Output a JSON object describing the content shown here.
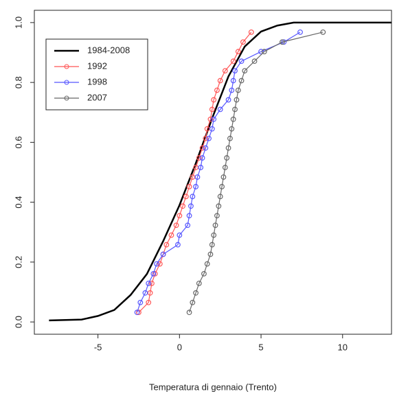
{
  "chart_data": {
    "type": "line",
    "xlabel": "Temperatura di gennaio (Trento)",
    "xlim": [
      -8.9,
      13.0
    ],
    "ylim": [
      -0.041,
      1.041
    ],
    "xticks": [
      -5,
      0,
      5,
      10
    ],
    "yticks": [
      {
        "value": 0,
        "label": "0.0"
      },
      0.2,
      0.4,
      0.6,
      0.8,
      {
        "value": 1,
        "label": "1.0"
      }
    ],
    "legend": "top-left",
    "series": [
      {
        "name": "1984-2008",
        "color": "#000000",
        "markers": false,
        "x": [
          -8,
          -6,
          -5,
          -4,
          -3,
          -2,
          -1,
          0,
          1,
          2,
          3,
          4,
          5,
          6,
          7,
          13
        ],
        "values": [
          0.005,
          0.008,
          0.02,
          0.04,
          0.09,
          0.16,
          0.27,
          0.39,
          0.53,
          0.68,
          0.82,
          0.92,
          0.97,
          0.99,
          1.0,
          1.0
        ]
      },
      {
        "name": "1992",
        "color": "#ff5555",
        "markers": true,
        "x": [
          -2.5,
          -1.9,
          -1.8,
          -1.7,
          -1.5,
          -1.2,
          -1.0,
          -0.8,
          -0.5,
          -0.2,
          0.0,
          0.2,
          0.4,
          0.6,
          0.8,
          1.0,
          1.2,
          1.4,
          1.6,
          1.7,
          1.9,
          2.0,
          2.1,
          2.3,
          2.5,
          2.8,
          3.3,
          3.6,
          3.9,
          4.4
        ],
        "values": [
          0.032,
          0.065,
          0.097,
          0.129,
          0.161,
          0.194,
          0.226,
          0.258,
          0.29,
          0.323,
          0.355,
          0.387,
          0.419,
          0.452,
          0.484,
          0.516,
          0.548,
          0.581,
          0.613,
          0.645,
          0.677,
          0.71,
          0.742,
          0.774,
          0.806,
          0.839,
          0.871,
          0.903,
          0.935,
          0.968
        ]
      },
      {
        "name": "1998",
        "color": "#5555ff",
        "markers": true,
        "x": [
          -2.6,
          -2.4,
          -2.1,
          -1.9,
          -1.6,
          -1.4,
          -1.0,
          -0.1,
          0.0,
          0.5,
          0.6,
          0.7,
          0.8,
          1.0,
          1.1,
          1.3,
          1.4,
          1.6,
          1.8,
          2.0,
          2.1,
          2.5,
          3.0,
          3.2,
          3.3,
          3.4,
          3.8,
          5.0,
          6.4,
          7.4
        ],
        "values": [
          0.032,
          0.065,
          0.097,
          0.129,
          0.161,
          0.194,
          0.226,
          0.258,
          0.29,
          0.323,
          0.355,
          0.387,
          0.419,
          0.452,
          0.484,
          0.516,
          0.548,
          0.581,
          0.613,
          0.645,
          0.677,
          0.71,
          0.742,
          0.774,
          0.806,
          0.839,
          0.871,
          0.903,
          0.935,
          0.968
        ]
      },
      {
        "name": "2007",
        "color": "#666666",
        "markers": true,
        "x": [
          0.6,
          0.8,
          1.0,
          1.2,
          1.5,
          1.7,
          1.9,
          2.0,
          2.1,
          2.2,
          2.3,
          2.4,
          2.5,
          2.6,
          2.7,
          2.8,
          2.9,
          3.0,
          3.1,
          3.2,
          3.3,
          3.4,
          3.5,
          3.6,
          3.8,
          4.0,
          4.6,
          5.2,
          6.3,
          8.8
        ],
        "values": [
          0.032,
          0.065,
          0.097,
          0.129,
          0.161,
          0.194,
          0.226,
          0.258,
          0.29,
          0.323,
          0.355,
          0.387,
          0.419,
          0.452,
          0.484,
          0.516,
          0.548,
          0.581,
          0.613,
          0.645,
          0.677,
          0.71,
          0.742,
          0.774,
          0.806,
          0.839,
          0.871,
          0.903,
          0.935,
          0.968
        ]
      }
    ]
  }
}
